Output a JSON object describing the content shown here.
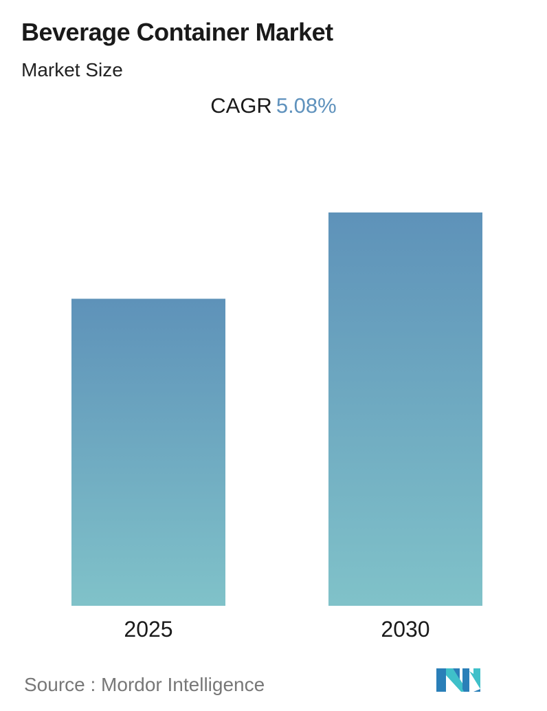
{
  "title": "Beverage Container Market",
  "subtitle": "Market Size",
  "cagr": {
    "label": "CAGR",
    "value": "5.08%"
  },
  "source": "Source :  Mordor Intelligence",
  "colors": {
    "bar_top": "#5e92b9",
    "bar_bottom": "#80c2c9",
    "cagr_value": "#5f92bd",
    "logo_dark": "#2a7fb8",
    "logo_light": "#3fc0c9"
  },
  "logo": {
    "name": "mordor-intelligence-logo"
  },
  "chart_data": {
    "type": "bar",
    "categories": [
      "2025",
      "2030"
    ],
    "values": [
      100,
      128.1
    ],
    "title": "Beverage Container Market",
    "subtitle": "Market Size",
    "xlabel": "",
    "ylabel": "",
    "grid": false,
    "legend": "none"
  }
}
